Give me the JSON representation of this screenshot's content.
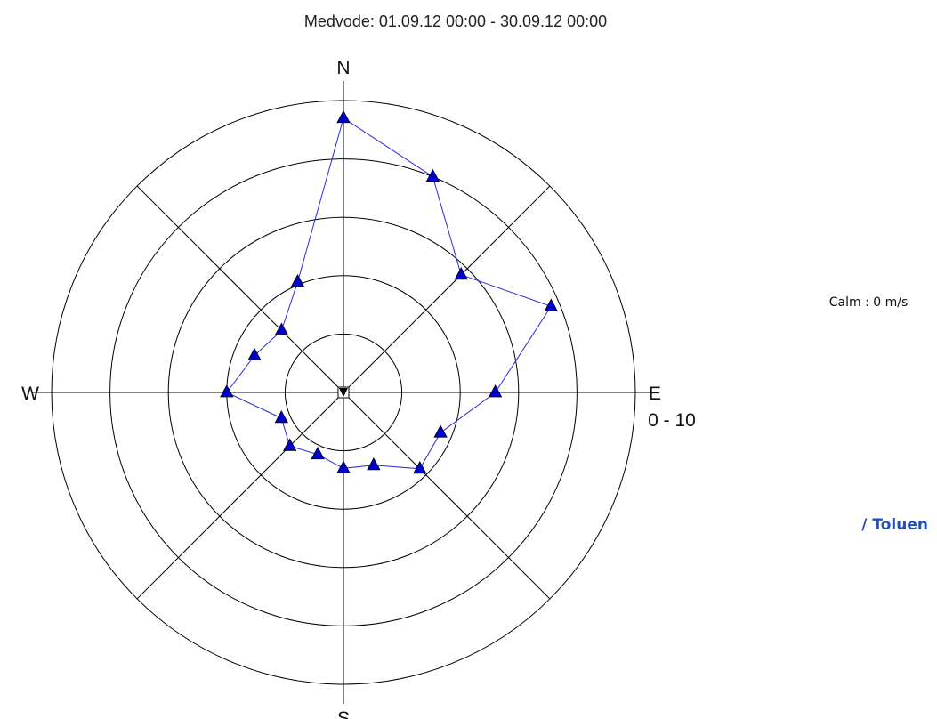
{
  "title": "Medvode: 01.09.12 00:00 - 30.09.12 00:00",
  "calm_text": "Calm : 0 m/s",
  "series_text": "/ Toluen",
  "range_text": "0 - 10",
  "colors": {
    "series_line": "#2b2bd6",
    "marker_fill": "#0000cc",
    "series_label": "#1f4fbf",
    "grid": "#000000"
  },
  "chart_data": {
    "type": "radar",
    "title": "Medvode: 01.09.12 00:00 - 30.09.12 00:00",
    "direction_labels": [
      "N",
      "E",
      "S",
      "W"
    ],
    "rings": [
      1,
      2,
      3,
      4,
      5
    ],
    "radial_range": [
      0,
      5
    ],
    "range_label": "0 - 10",
    "calm": "Calm : 0 m/s",
    "series": [
      {
        "name": "/ Toluen",
        "marker": "triangle",
        "points": [
          {
            "angle": 0,
            "r": 4.7
          },
          {
            "angle": 22.5,
            "r": 4.0
          },
          {
            "angle": 45,
            "r": 2.85
          },
          {
            "angle": 67.5,
            "r": 3.85
          },
          {
            "angle": 90,
            "r": 2.6
          },
          {
            "angle": 112.5,
            "r": 1.8
          },
          {
            "angle": 135,
            "r": 1.85
          },
          {
            "angle": 157.5,
            "r": 1.35
          },
          {
            "angle": 180,
            "r": 1.3
          },
          {
            "angle": 202.5,
            "r": 1.15
          },
          {
            "angle": 225,
            "r": 1.3
          },
          {
            "angle": 247.5,
            "r": 1.15
          },
          {
            "angle": 270,
            "r": 2.0
          },
          {
            "angle": 292.5,
            "r": 1.65
          },
          {
            "angle": 315,
            "r": 1.5
          },
          {
            "angle": 337.5,
            "r": 2.05
          }
        ]
      }
    ]
  }
}
